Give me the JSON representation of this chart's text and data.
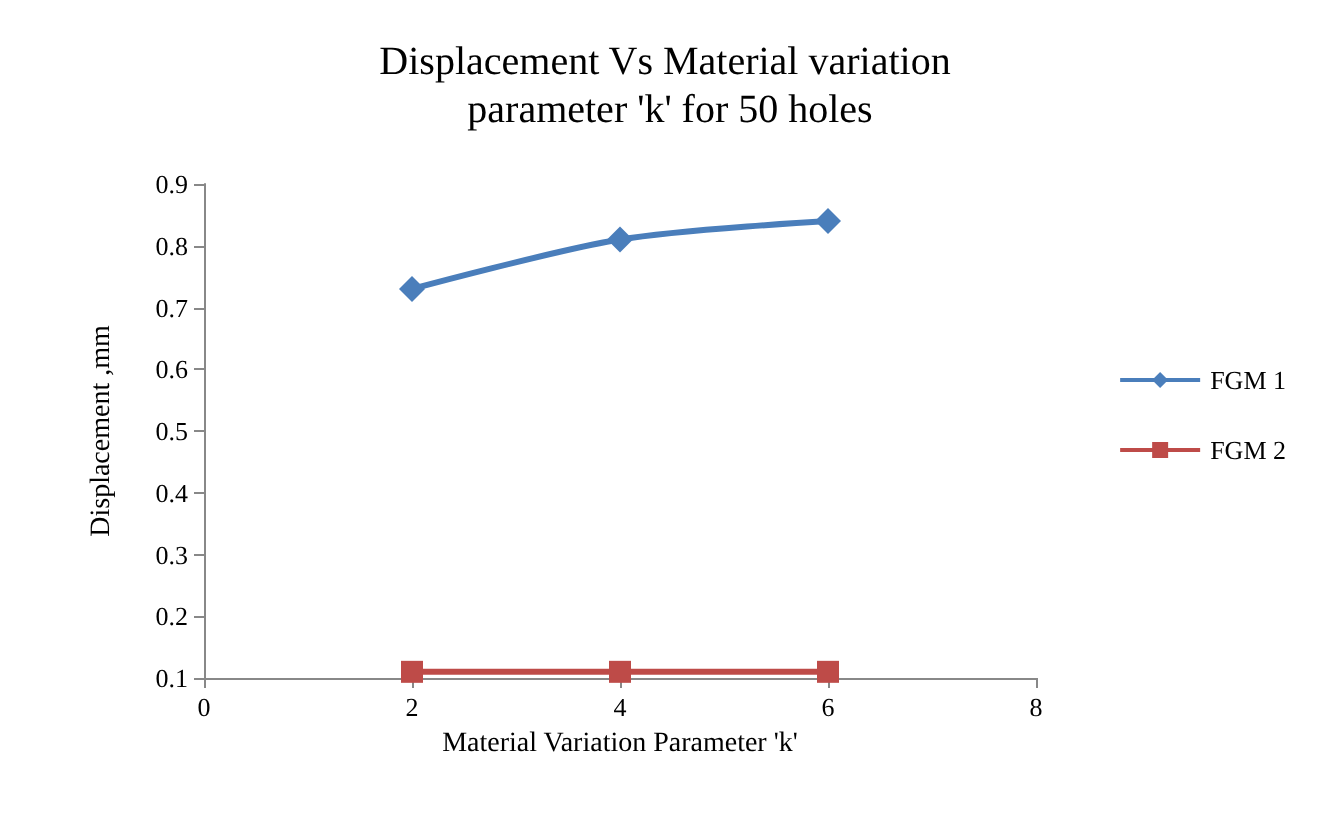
{
  "chart_data": {
    "type": "line",
    "title": "Displacement Vs Material variation parameter 'k' for 50 holes",
    "xlabel": "Material Variation Parameter 'k'",
    "ylabel": "Displacement ,mm",
    "x": [
      2,
      4,
      6
    ],
    "series": [
      {
        "name": "FGM 1",
        "color": "#4a7ebb",
        "marker": "diamond",
        "values": [
          0.73,
          0.81,
          0.84
        ]
      },
      {
        "name": "FGM 2",
        "color": "#be4b48",
        "marker": "square",
        "values": [
          0.11,
          0.11,
          0.11
        ]
      }
    ],
    "xlim": [
      0,
      8
    ],
    "xticks": [
      0,
      2,
      4,
      6,
      8
    ],
    "ylim": [
      0.1,
      0.9
    ],
    "yticks": [
      0.1,
      0.2,
      0.3,
      0.4,
      0.5,
      0.6,
      0.7,
      0.8,
      0.9
    ],
    "grid": false,
    "legend": "right"
  }
}
